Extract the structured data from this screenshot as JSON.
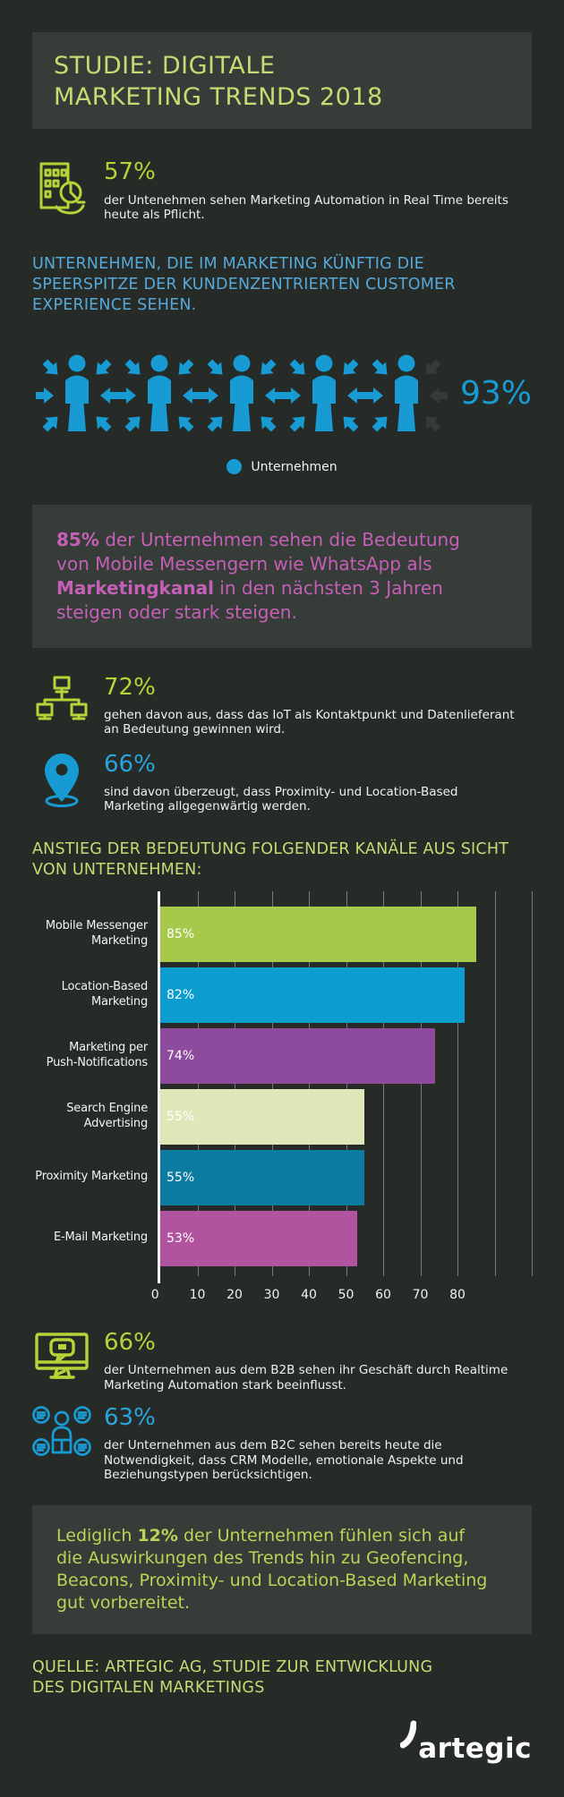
{
  "colors": {
    "page_bg": "#262b28",
    "panel_bg": "#363c38",
    "green_title": "#c9da74",
    "green_accent": "#b5d437",
    "blue_heading": "#57a8d8",
    "blue_accent": "#189ad3",
    "magenta": "#c55fb7",
    "text": "#eef1ee"
  },
  "header": {
    "title_line1": "STUDIE: DIGITALE",
    "title_line2": "MARKETING TRENDS 2018"
  },
  "stats": {
    "automation": {
      "value": "57%",
      "icon": "building-chart-icon",
      "text": "der Untenehmen sehen Marketing Automation in Real Time bereits heute als Pflicht."
    },
    "iot": {
      "value": "72%",
      "icon": "network-icon",
      "text": "gehen davon aus, dass das IoT als Kontaktpunkt und Datenlieferant an Bedeutung gewinnen wird."
    },
    "proximity": {
      "value": "66%",
      "icon": "location-pin-icon",
      "text": "sind davon überzeugt, dass Proximity- und Location-Based Marketing allgegenwärtig werden."
    },
    "b2b": {
      "value": "66%",
      "icon": "monitor-chat-icon",
      "text": "der Unternehmen aus dem B2B sehen ihr Geschäft durch Realtime Marketing Automation stark beeinflusst."
    },
    "b2c": {
      "value": "63%",
      "icon": "people-group-icon",
      "text": "der Unternehmen aus dem B2C sehen bereits heute die Notwendigkeit, dass CRM Modelle, emotionale Aspekte und Beziehungstypen berücksichtigen."
    }
  },
  "customer_experience": {
    "heading": "UNTERNEHMEN, DIE IM MARKETING KÜNFTIG DIE SPEERSPITZE DER KUNDENZENTRIERTEN CUSTOMER EXPERIENCE SEHEN.",
    "value": "93%",
    "legend_label": "Unternehmen"
  },
  "messenger_callout": {
    "part_bold1": "85%",
    "part_text1": " der Unternehmen sehen die Bedeutung von Mobile Messengern wie WhatsApp als ",
    "part_bold2": "Marketingkanal",
    "part_text2": " in den nächsten 3 Jahren steigen oder stark steigen."
  },
  "chart_heading": "ANSTIEG DER BEDEUTUNG FOLGENDER KANÄLE AUS SICHT VON UNTERNEHMEN:",
  "chart_data": {
    "type": "bar",
    "orientation": "horizontal",
    "title": "ANSTIEG DER BEDEUTUNG FOLGENDER KANÄLE AUS SICHT VON UNTERNEHMEN:",
    "categories": [
      "Mobile Messenger\nMarketing",
      "Location-Based\nMarketing",
      "Marketing per\nPush-Notifications",
      "Search Engine\nAdvertising",
      "Proximity Marketing",
      "E-Mail Marketing"
    ],
    "values": [
      85,
      82,
      74,
      55,
      55,
      53
    ],
    "value_labels": [
      "85%",
      "82%",
      "74%",
      "55%",
      "55%",
      "53%"
    ],
    "bar_colors": [
      "#a7c94b",
      "#0b9dd0",
      "#8d4b9e",
      "#dfe7b8",
      "#0c7ba0",
      "#b2539f"
    ],
    "xlabel": "",
    "ylabel": "",
    "xlim": [
      0,
      100
    ],
    "xticks": [
      0,
      10,
      20,
      30,
      40,
      50,
      60,
      70,
      80
    ],
    "grid": true,
    "unit": "%"
  },
  "preparedness_callout": {
    "part_text1": "Lediglich ",
    "part_bold1": "12%",
    "part_text2": " der Unternehmen fühlen sich auf die Auswirkungen des Trends hin zu Geofencing, Beacons, Proximity- und Location-Based Marketing gut vorbereitet."
  },
  "footer": {
    "source_line1": "QUELLE: ARTEGIC AG, STUDIE ZUR ENTWICKLUNG",
    "source_line2": "DES DIGITALEN MARKETINGS",
    "logo_text": "artegic"
  }
}
